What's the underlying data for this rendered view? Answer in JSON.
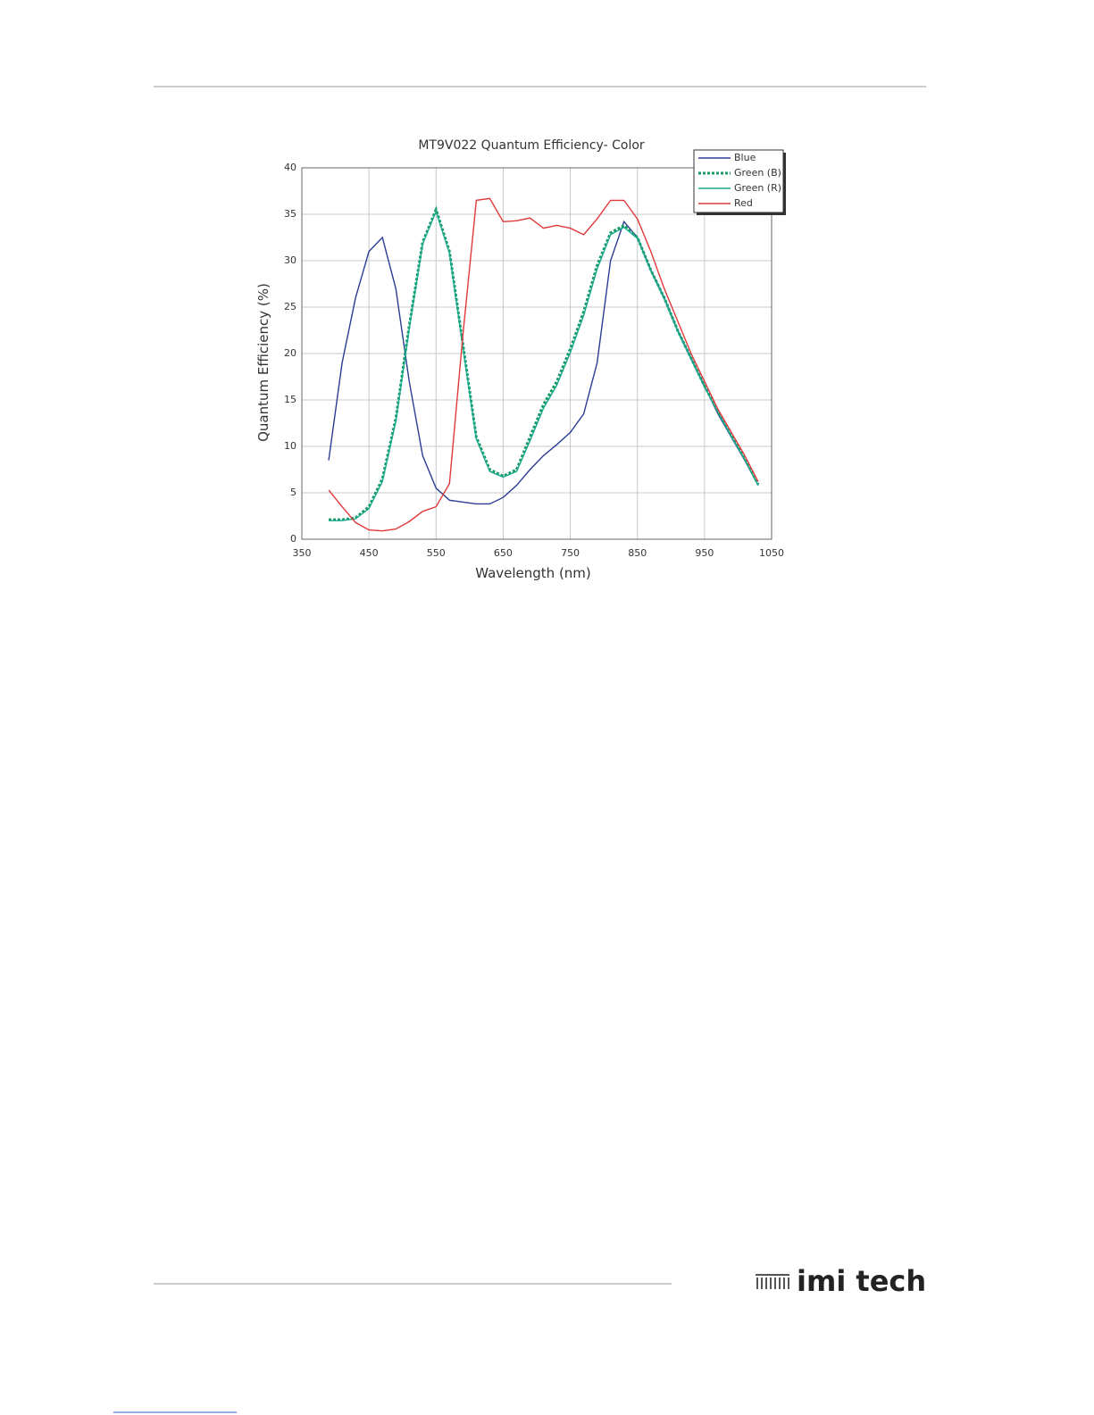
{
  "chart_data": {
    "type": "line",
    "title": "MT9V022 Quantum Efficiency- Color",
    "x_label": "Wavelength (nm)",
    "y_label": "Quantum Efficiency (%)",
    "x": [
      390,
      410,
      430,
      450,
      470,
      490,
      510,
      530,
      550,
      570,
      590,
      610,
      630,
      650,
      670,
      690,
      710,
      730,
      750,
      770,
      790,
      810,
      830,
      850,
      870,
      890,
      910,
      930,
      950,
      970,
      990,
      1010,
      1030
    ],
    "series": [
      {
        "name": "Blue",
        "color": "#2b3c94",
        "dash": false,
        "values": [
          8.5,
          19,
          26,
          31,
          32.5,
          27,
          17,
          9,
          5.5,
          4.2,
          4.0,
          3.8,
          3.8,
          4.5,
          5.8,
          7.5,
          9,
          10.2,
          11.5,
          13.5,
          19,
          30,
          34.2,
          32.5,
          29,
          26,
          22.5,
          19.5,
          16.5,
          13.5,
          11,
          8.5,
          5.8
        ]
      },
      {
        "name": "Green (B)",
        "color": "#159a66",
        "dash": true,
        "values": [
          2.1,
          2.1,
          2.3,
          3.5,
          6.5,
          13,
          23,
          32,
          35.5,
          31,
          21,
          11,
          7.5,
          6.8,
          7.5,
          11,
          14.5,
          17,
          20.5,
          24.5,
          29.5,
          33,
          33.8,
          32.5,
          29,
          26,
          22.5,
          19.5,
          16.5,
          13.8,
          11.2,
          8.7,
          5.9
        ]
      },
      {
        "name": "Green (R)",
        "color": "#1aaa8c",
        "dash": false,
        "values": [
          2.0,
          2.0,
          2.2,
          3.3,
          6.2,
          12.7,
          22.7,
          31.8,
          35.3,
          30.8,
          20.7,
          10.8,
          7.3,
          6.7,
          7.3,
          10.6,
          14.1,
          16.6,
          20.1,
          24.1,
          29.1,
          32.8,
          33.6,
          32.4,
          28.9,
          25.9,
          22.4,
          19.4,
          16.4,
          13.7,
          11.1,
          8.6,
          5.8
        ]
      },
      {
        "name": "Red",
        "color": "#e2383a",
        "dash": false,
        "values": [
          5.3,
          3.5,
          1.8,
          1.0,
          0.9,
          1.1,
          1.9,
          3.0,
          3.5,
          6,
          22,
          36.5,
          36.7,
          34.2,
          34.3,
          34.6,
          33.5,
          33.8,
          33.5,
          32.8,
          34.5,
          36.5,
          36.5,
          34.5,
          31,
          27,
          23.5,
          20,
          17,
          14,
          11.5,
          9,
          6.2
        ]
      }
    ],
    "xlim": [
      350,
      1050
    ],
    "xticks": [
      350,
      450,
      550,
      650,
      750,
      850,
      950,
      1050
    ],
    "ylim": [
      0,
      40
    ],
    "yticks": [
      0,
      5,
      10,
      15,
      20,
      25,
      30,
      35,
      40
    ],
    "grid": true,
    "legend": "upper right"
  },
  "footer": {
    "logo": "imi tech"
  }
}
